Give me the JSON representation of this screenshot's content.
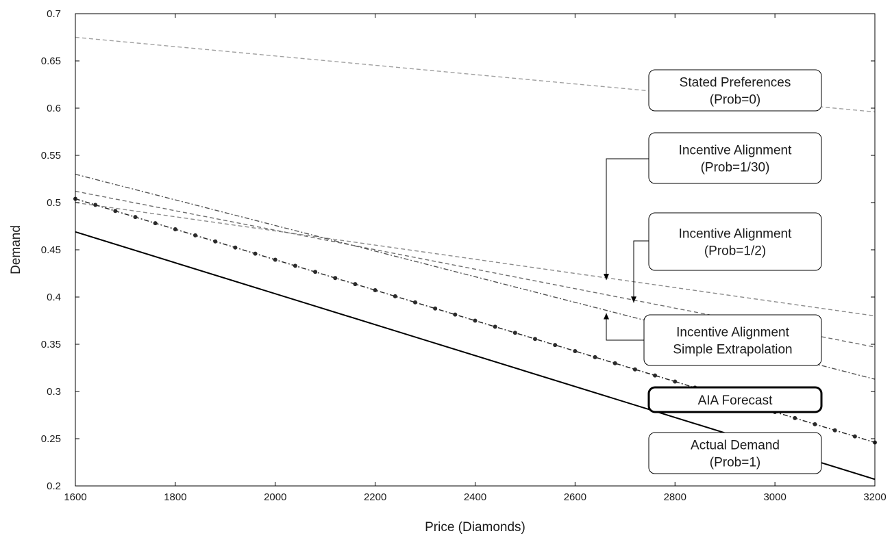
{
  "chart_data": {
    "type": "line",
    "xlabel": "Price (Diamonds)",
    "ylabel": "Demand",
    "xlim": [
      1600,
      3200
    ],
    "ylim": [
      0.2,
      0.7
    ],
    "grid": false,
    "xticks": [
      1600,
      1800,
      2000,
      2200,
      2400,
      2600,
      2800,
      3000,
      3200
    ],
    "xtick_labels": [
      "1600",
      "1800",
      "2000",
      "2200",
      "2400",
      "2600",
      "2800",
      "3000",
      "3200"
    ],
    "yticks": [
      0.2,
      0.25,
      0.3,
      0.35,
      0.4,
      0.45,
      0.5,
      0.55,
      0.6,
      0.65,
      0.7
    ],
    "ytick_labels": [
      "0.2",
      "0.25",
      "0.3",
      "0.35",
      "0.4",
      "0.45",
      "0.5",
      "0.55",
      "0.6",
      "0.65",
      "0.7"
    ],
    "series": [
      {
        "key": "stated",
        "style": "dashed",
        "color": "#a0a0a0",
        "x": [
          1600,
          3200
        ],
        "y": [
          0.675,
          0.596
        ]
      },
      {
        "key": "ia_30",
        "style": "dashed",
        "color": "#8a8a8a",
        "x": [
          1600,
          3200
        ],
        "y": [
          0.5,
          0.38
        ]
      },
      {
        "key": "ia_2",
        "style": "dashed",
        "color": "#6e6e6e",
        "x": [
          1600,
          3200
        ],
        "y": [
          0.512,
          0.347
        ]
      },
      {
        "key": "ia_simple",
        "style": "dashdot",
        "color": "#555555",
        "x": [
          1600,
          3200
        ],
        "y": [
          0.53,
          0.313
        ]
      },
      {
        "key": "aia",
        "style": "dashdot-markers",
        "color": "#2a2a2a",
        "x": [
          1600,
          3200
        ],
        "y": [
          0.504,
          0.246
        ],
        "marker_count": 41
      },
      {
        "key": "actual",
        "style": "solid",
        "color": "#000000",
        "x": [
          1600,
          3200
        ],
        "y": [
          0.469,
          0.207
        ]
      }
    ],
    "annotations": [
      {
        "key": "stated",
        "lines": [
          "Stated Preferences",
          "(Prob=0)"
        ],
        "bold": false
      },
      {
        "key": "ia_30",
        "lines": [
          "Incentive Alignment",
          "(Prob=1/30)"
        ],
        "bold": false,
        "arrow_to": [
          2670,
          0.418
        ]
      },
      {
        "key": "ia_2",
        "lines": [
          "Incentive Alignment",
          "(Prob=1/2)"
        ],
        "bold": false,
        "arrow_to": [
          2723,
          0.394
        ]
      },
      {
        "key": "ia_simple",
        "lines": [
          "Incentive Alignment",
          "Simple Extrapolation"
        ],
        "bold": false,
        "arrow_to": [
          2670,
          0.383
        ]
      },
      {
        "key": "aia",
        "lines": [
          "AIA Forecast"
        ],
        "bold": true
      },
      {
        "key": "actual",
        "lines": [
          "Actual Demand",
          "(Prob=1)"
        ],
        "bold": false
      }
    ]
  }
}
